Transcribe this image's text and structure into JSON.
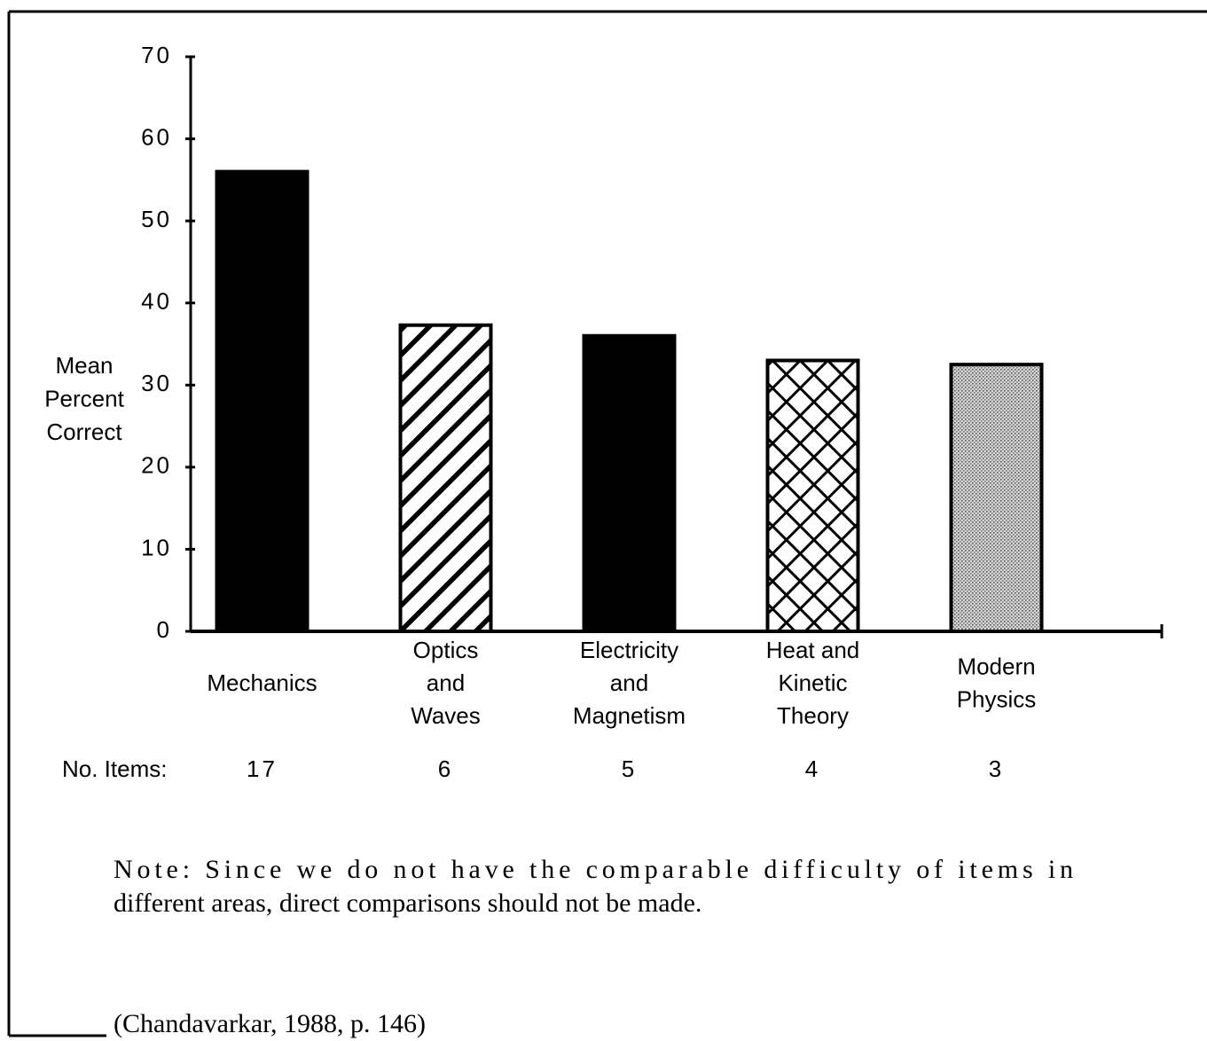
{
  "chart_data": {
    "type": "bar",
    "ylabel": [
      "Mean",
      "Percent",
      "Correct"
    ],
    "categories": [
      "Mechanics",
      "Optics\nand\nWaves",
      "Electricity\nand\nMagnetism",
      "Heat and\nKinetic\nTheory",
      "Modern\nPhysics"
    ],
    "values": [
      56,
      37.3,
      36,
      33,
      32.5
    ],
    "patterns": [
      "solid",
      "diagonal",
      "solid",
      "crosshatch",
      "dots"
    ],
    "color": "#000000",
    "ylim": [
      0,
      70
    ],
    "yticks": [
      0,
      10,
      20,
      30,
      40,
      50,
      60,
      70
    ],
    "items_label": "No. Items:",
    "items": [
      17,
      6,
      5,
      4,
      3
    ],
    "note": [
      "Note:  Since we do not have the comparable difficulty of items in",
      "different areas, direct comparisons should not be made."
    ],
    "source": "(Chandavarkar, 1988, p. 146)"
  }
}
